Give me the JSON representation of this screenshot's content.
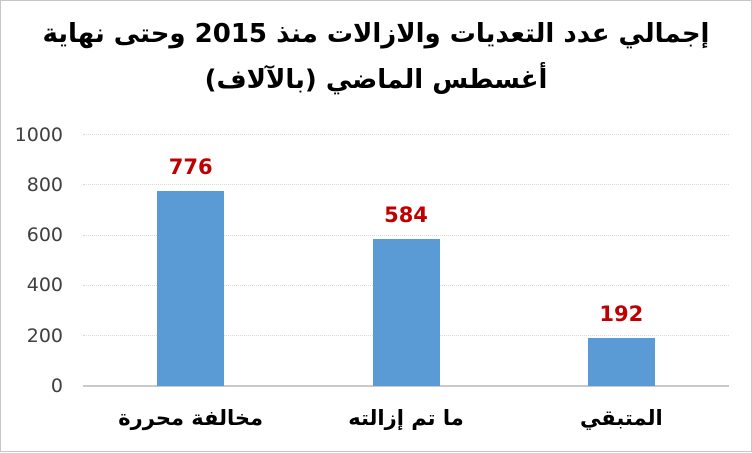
{
  "chart_data": {
    "type": "bar",
    "title_line1": "إجمالي عدد التعديات والازالات منذ 2015 وحتى نهاية",
    "title_line2": "أغسطس  الماضي (بالآلاف)",
    "categories": [
      "مخالفة محررة",
      "ما تم إزالته",
      "المتبقي"
    ],
    "values": [
      776,
      584,
      192
    ],
    "y_ticks": [
      0,
      200,
      400,
      600,
      800,
      1000
    ],
    "ylim": [
      0,
      1000
    ],
    "grid": true,
    "legend_position": "none",
    "bar_color": "#5B9BD5",
    "value_label_color": "#C00000",
    "grid_color": "#D9D9D9",
    "axis_line_color": "#C9C9C9",
    "tick_label_color": "#404040",
    "title_color": "#000000"
  }
}
